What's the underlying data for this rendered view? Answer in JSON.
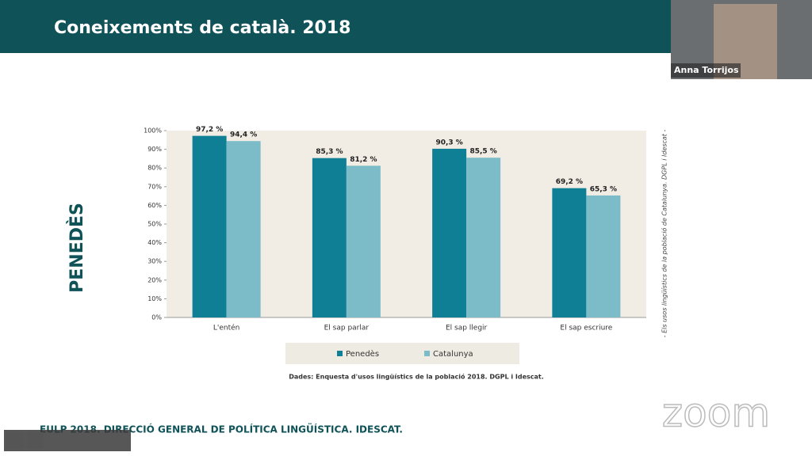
{
  "header": {
    "title": "Coneixements de català. 2018"
  },
  "speaker": {
    "name": "Anna Torrijos"
  },
  "side_label": "PENEDÈS",
  "chart_data": {
    "type": "bar",
    "categories": [
      "L'entén",
      "El sap parlar",
      "El sap llegir",
      "El sap escriure"
    ],
    "series": [
      {
        "name": "Penedès",
        "color": "#0f7f95",
        "values": [
          97.2,
          85.3,
          90.3,
          69.2
        ],
        "value_labels": [
          "97,2 %",
          "85,3 %",
          "90,3 %",
          "69,2 %"
        ]
      },
      {
        "name": "Catalunya",
        "color": "#7bbcc8",
        "values": [
          94.4,
          81.2,
          85.5,
          65.3
        ],
        "value_labels": [
          "94,4 %",
          "81,2 %",
          "85,5 %",
          "65,3 %"
        ]
      }
    ],
    "ylim": [
      0,
      100
    ],
    "yticks": [
      {
        "value": 0,
        "label": "0%"
      },
      {
        "value": 10,
        "label": "10%"
      },
      {
        "value": 20,
        "label": "20%"
      },
      {
        "value": 30,
        "label": "30%"
      },
      {
        "value": 40,
        "label": "40%"
      },
      {
        "value": 50,
        "label": "50%"
      },
      {
        "value": 60,
        "label": "60%"
      },
      {
        "value": 70,
        "label": "70%"
      },
      {
        "value": 80,
        "label": "80%"
      },
      {
        "value": 90,
        "label": "90%"
      },
      {
        "value": 100,
        "label": "100%"
      }
    ],
    "source": "Dades: Enquesta d'usos lingüístics de la població 2018. DGPL i Idescat.",
    "side_note": "- Els usos lingüístics de la població de Catalunya. DGPL i Idescat -",
    "legend": "bottom"
  },
  "footer": "EULP 2018. DIRECCIÓ GENERAL DE POLÍTICA LINGÜÍSTICA. IDESCAT.",
  "watermark": "zoom"
}
